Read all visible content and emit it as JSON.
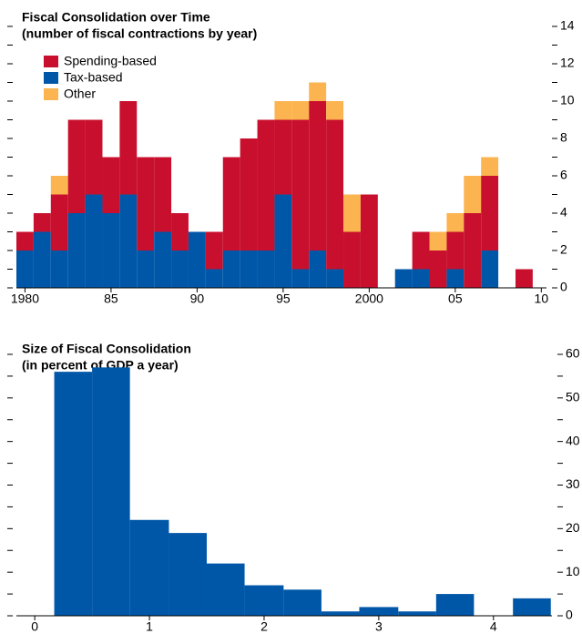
{
  "chart_data": [
    {
      "type": "stacked-bar",
      "title": "Fiscal Consolidation over Time",
      "subtitle": "(number of fiscal contractions by year)",
      "x": [
        1980,
        1981,
        1982,
        1983,
        1984,
        1985,
        1986,
        1987,
        1988,
        1989,
        1990,
        1991,
        1992,
        1993,
        1994,
        1995,
        1996,
        1997,
        1998,
        1999,
        2000,
        2001,
        2002,
        2003,
        2004,
        2005,
        2006,
        2007,
        2008,
        2009
      ],
      "series": [
        {
          "name": "Spending-based",
          "color": "#c8102e",
          "values": [
            1,
            1,
            3,
            5,
            4,
            3,
            5,
            5,
            4,
            2,
            0,
            2,
            5,
            6,
            7,
            4,
            8,
            8,
            8,
            3,
            5,
            0,
            0,
            2,
            2,
            2,
            4,
            4,
            0,
            1
          ]
        },
        {
          "name": "Tax-based",
          "color": "#0057a8",
          "values": [
            2,
            3,
            2,
            4,
            5,
            4,
            5,
            2,
            3,
            2,
            3,
            1,
            2,
            2,
            2,
            5,
            1,
            2,
            1,
            0,
            0,
            0,
            1,
            1,
            0,
            1,
            0,
            2,
            0,
            0
          ]
        },
        {
          "name": "Other",
          "color": "#fbb450",
          "values": [
            0,
            0,
            1,
            0,
            0,
            0,
            0,
            0,
            0,
            0,
            0,
            0,
            0,
            0,
            0,
            1,
            1,
            1,
            1,
            2,
            0,
            0,
            0,
            0,
            1,
            1,
            2,
            1,
            0,
            0
          ]
        }
      ],
      "xlim": [
        1979.5,
        2010.3
      ],
      "xticks": [
        {
          "value": 1980,
          "label": "1980"
        },
        {
          "value": 1985,
          "label": "85"
        },
        {
          "value": 1990,
          "label": "90"
        },
        {
          "value": 1995,
          "label": "95"
        },
        {
          "value": 2000,
          "label": "2000"
        },
        {
          "value": 2005,
          "label": "05"
        },
        {
          "value": 2010,
          "label": "10"
        }
      ],
      "ylim": [
        0,
        14
      ],
      "yticks": [
        0,
        2,
        4,
        6,
        8,
        10,
        12,
        14
      ],
      "legend": "top-left"
    },
    {
      "type": "histogram",
      "title": "Size of Fiscal Consolidation",
      "subtitle": "(in percent of GDP a year)",
      "color": "#0057a8",
      "bins": [
        0.17,
        0.5,
        0.83,
        1.17,
        1.5,
        1.83,
        2.17,
        2.5,
        2.83,
        3.17,
        3.5,
        3.83,
        4.17,
        4.5
      ],
      "values": [
        56,
        57,
        22,
        19,
        12,
        7,
        6,
        1,
        2,
        1,
        5,
        0,
        4
      ],
      "xlim": [
        -0.16,
        4.51
      ],
      "xticks": [
        0,
        1,
        2,
        3,
        4
      ],
      "ylim": [
        0,
        60
      ],
      "yticks": [
        0,
        10,
        20,
        30,
        40,
        50,
        60
      ]
    }
  ]
}
